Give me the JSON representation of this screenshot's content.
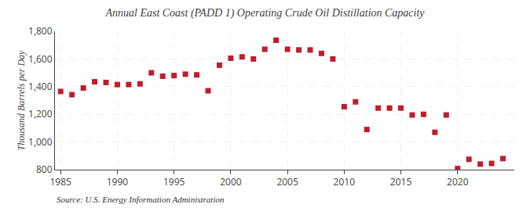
{
  "chart_data": {
    "type": "scatter",
    "title": "Annual East Coast (PADD 1) Operating Crude Oil Distillation Capacity",
    "ylabel": "Thousand Barrels per Day",
    "annotations": [
      "Source: U.S. Energy Information Administration"
    ],
    "x": [
      1985,
      1986,
      1987,
      1988,
      1989,
      1990,
      1991,
      1992,
      1993,
      1994,
      1995,
      1996,
      1997,
      1998,
      1999,
      2000,
      2001,
      2002,
      2003,
      2004,
      2005,
      2006,
      2007,
      2008,
      2009,
      2010,
      2011,
      2012,
      2013,
      2014,
      2015,
      2016,
      2017,
      2018,
      2019,
      2020,
      2021,
      2022,
      2023,
      2024
    ],
    "values": [
      1365,
      1342,
      1390,
      1435,
      1430,
      1415,
      1415,
      1420,
      1500,
      1475,
      1480,
      1490,
      1485,
      1370,
      1555,
      1605,
      1615,
      1600,
      1670,
      1735,
      1670,
      1665,
      1665,
      1640,
      1600,
      1255,
      1290,
      1090,
      1245,
      1245,
      1245,
      1195,
      1200,
      1070,
      1195,
      808,
      875,
      840,
      845,
      880
    ],
    "color": "#be1e2d",
    "marker": "square",
    "xlim": [
      1984.5,
      2025
    ],
    "xticks": [
      1985,
      1990,
      1995,
      2000,
      2005,
      2010,
      2015,
      2020
    ],
    "ylim": [
      800,
      1800
    ],
    "yticks": [
      800,
      {
        "value": 1000,
        "label": "1,000"
      },
      {
        "value": 1200,
        "label": "1,200"
      },
      {
        "value": 1400,
        "label": "1,400"
      },
      {
        "value": 1600,
        "label": "1,600"
      },
      {
        "value": 1800,
        "label": "1,800"
      }
    ],
    "grid": true
  }
}
